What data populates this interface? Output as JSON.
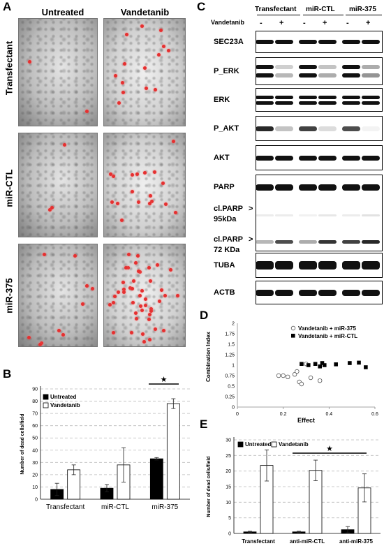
{
  "panels": {
    "A": "A",
    "B": "B",
    "C": "C",
    "D": "D",
    "E": "E"
  },
  "panelA": {
    "col_headers": [
      "Untreated",
      "Vandetanib"
    ],
    "row_labels": [
      "Transfectant",
      "miR-CTL",
      "miR-375"
    ]
  },
  "panelC": {
    "groups": [
      "Transfectant",
      "miR-CTL",
      "miR-375"
    ],
    "treatment_label": "Vandetanib",
    "lane_signs": [
      "-",
      "+",
      "-",
      "+",
      "-",
      "+"
    ],
    "blots": [
      "SEC23A",
      "P_ERK",
      "ERK",
      "P_AKT",
      "AKT",
      "PARP",
      "cl.PARP\n95kDa",
      "cl.PARP\n72 KDa",
      "TUBA",
      "ACTB"
    ],
    "arrow": ">"
  },
  "chart_data": [
    {
      "panel": "B",
      "type": "bar",
      "categories": [
        "Transfectant",
        "miR-CTL",
        "miR-375"
      ],
      "series": [
        {
          "name": "Untreated",
          "values": [
            8,
            9,
            33
          ],
          "errors": [
            5,
            3,
            1
          ],
          "color": "#000000"
        },
        {
          "name": "Vandetanib",
          "values": [
            24,
            28,
            78
          ],
          "errors": [
            4,
            14,
            4
          ],
          "color": "#ffffff"
        }
      ],
      "ylabel": "Number of dead cells/field",
      "ylim": [
        0,
        90
      ],
      "yticks": [
        0,
        10,
        20,
        30,
        40,
        50,
        60,
        70,
        80,
        90
      ],
      "legend": "top-left",
      "significance": "★",
      "grid": true
    },
    {
      "panel": "D",
      "type": "scatter",
      "series": [
        {
          "name": "Vandetanib + miR-375",
          "marker": "open-circle",
          "x": [
            0.18,
            0.2,
            0.22,
            0.25,
            0.26,
            0.27,
            0.28,
            0.3,
            0.32,
            0.36
          ],
          "y": [
            0.75,
            0.75,
            0.72,
            0.78,
            0.85,
            0.6,
            0.55,
            1.03,
            0.7,
            0.63
          ]
        },
        {
          "name": "Vandetanib + miR-CTL",
          "marker": "filled-square",
          "x": [
            0.28,
            0.31,
            0.34,
            0.36,
            0.37,
            0.38,
            0.43,
            0.49,
            0.53,
            0.56
          ],
          "y": [
            1.03,
            1.0,
            1.03,
            0.97,
            1.05,
            1.0,
            1.02,
            1.05,
            1.06,
            0.95
          ]
        }
      ],
      "xlabel": "Effect",
      "ylabel": "Combination Index",
      "xlim": [
        0,
        0.6
      ],
      "ylim": [
        0,
        2
      ],
      "xticks": [
        0,
        0.2,
        0.4,
        0.6
      ],
      "yticks": [
        0,
        0.25,
        0.5,
        0.75,
        1,
        1.25,
        1.5,
        1.75,
        2
      ],
      "legend": "top-left",
      "grid": false
    },
    {
      "panel": "E",
      "type": "bar",
      "categories": [
        "Transfectant",
        "anti-miR-CTL",
        "anti-miR-375"
      ],
      "series": [
        {
          "name": "Untreated",
          "values": [
            0.5,
            0.5,
            1.2
          ],
          "errors": [
            0.2,
            0.2,
            1
          ],
          "color": "#000000"
        },
        {
          "name": "Vandetanib",
          "values": [
            21.8,
            20.2,
            14.6
          ],
          "errors": [
            5,
            3.3,
            4.5
          ],
          "color": "#ffffff"
        }
      ],
      "ylabel": "Number of dead cells/field",
      "ylim": [
        0,
        30
      ],
      "yticks": [
        0,
        5,
        10,
        15,
        20,
        25,
        30
      ],
      "legend": "top-left",
      "significance": "★",
      "grid": true
    }
  ]
}
